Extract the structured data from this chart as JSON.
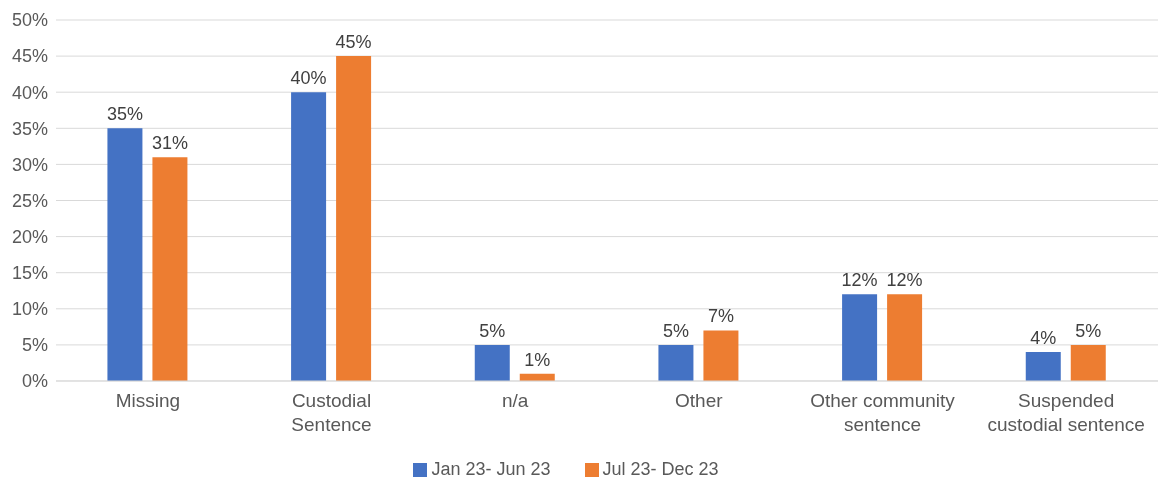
{
  "chart_data": {
    "type": "bar",
    "categories": [
      "Missing",
      "Custodial Sentence",
      "n/a",
      "Other",
      "Other community sentence",
      "Suspended custodial sentence"
    ],
    "series": [
      {
        "name": "Jan 23- Jun 23",
        "color": "#4472c4",
        "values": [
          35,
          40,
          5,
          5,
          12,
          4
        ],
        "value_labels": [
          "35%",
          "40%",
          "5%",
          "5%",
          "12%",
          "4%"
        ]
      },
      {
        "name": "Jul 23- Dec 23",
        "color": "#ed7d31",
        "values": [
          31,
          45,
          1,
          7,
          12,
          5
        ],
        "value_labels": [
          "31%",
          "45%",
          "1%",
          "7%",
          "12%",
          "5%"
        ]
      }
    ],
    "ylim": [
      0,
      50
    ],
    "yticks": [
      {
        "value": 0,
        "label": "0%"
      },
      {
        "value": 5,
        "label": "5%"
      },
      {
        "value": 10,
        "label": "10%"
      },
      {
        "value": 15,
        "label": "15%"
      },
      {
        "value": 20,
        "label": "20%"
      },
      {
        "value": 25,
        "label": "25%"
      },
      {
        "value": 30,
        "label": "30%"
      },
      {
        "value": 35,
        "label": "35%"
      },
      {
        "value": 40,
        "label": "40%"
      },
      {
        "value": 45,
        "label": "45%"
      },
      {
        "value": 50,
        "label": "50%"
      }
    ],
    "grid": "y",
    "legend": "bottom"
  }
}
